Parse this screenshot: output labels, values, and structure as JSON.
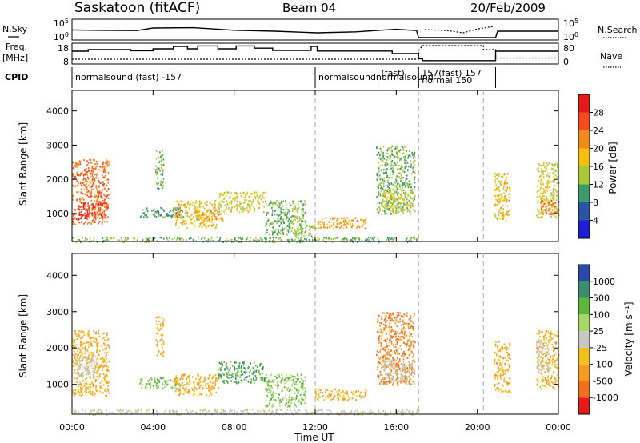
{
  "header": {
    "title": "Saskatoon (fitACF)",
    "beam": "Beam 04",
    "date": "20/Feb/2009"
  },
  "labels": {
    "nsky": "N.Sky",
    "freq_top": "Freq.",
    "freq_unit": "[MHz]",
    "cpid": "CPID",
    "nsearch": "N.Search",
    "nave": "Nave",
    "slant_range_top": "Slant Range [km]",
    "slant_range_bottom": "Slant Range [km]",
    "time_axis": "Time UT",
    "power_cbar": "Power [dB]",
    "velocity_cbar": "Velocity [m s⁻¹]"
  },
  "cpid_segments": [
    {
      "text": "normalsound (fast) -157",
      "start": 0.0,
      "end": 12.0
    },
    {
      "text": "normalsoundnormalsound",
      "start": 12.0,
      "end": 17.1
    },
    {
      "text": "(fast)",
      "start": 15.1,
      "end": 17.1
    },
    {
      "text": "157(fast) 157",
      "start": 17.1,
      "end": 20.9
    },
    {
      "text": "normal 150",
      "start": 17.1,
      "end": 20.3
    }
  ],
  "nsky_axis": {
    "ticks": [
      "10^5",
      "10^0"
    ]
  },
  "nsearch_axis": {
    "ticks": [
      "10^5",
      "10^0"
    ]
  },
  "freq_axis": {
    "ticks": [
      18,
      8
    ],
    "min": 8,
    "max": 18
  },
  "nave_axis": {
    "ticks": [
      80,
      0
    ],
    "min": 0,
    "max": 80
  },
  "freq_line": [
    [
      0,
      14.5
    ],
    [
      0.8,
      14.5
    ],
    [
      0.8,
      15.5
    ],
    [
      2.9,
      15.5
    ],
    [
      2.9,
      14.8
    ],
    [
      4.0,
      14.8
    ],
    [
      4.0,
      16.0
    ],
    [
      5.0,
      16.0
    ],
    [
      5.0,
      17.5
    ],
    [
      5.7,
      17.5
    ],
    [
      5.7,
      16.0
    ],
    [
      6.2,
      16.0
    ],
    [
      6.2,
      17.8
    ],
    [
      7.2,
      17.8
    ],
    [
      7.2,
      16.0
    ],
    [
      8.1,
      16.0
    ],
    [
      8.1,
      17.8
    ],
    [
      9.0,
      17.8
    ],
    [
      9.0,
      16.4
    ],
    [
      9.9,
      16.4
    ],
    [
      9.9,
      15.0
    ],
    [
      11.8,
      15.0
    ],
    [
      11.8,
      17.5
    ],
    [
      12.1,
      17.5
    ],
    [
      12.1,
      14.6
    ],
    [
      15.8,
      14.6
    ],
    [
      15.8,
      13.0
    ],
    [
      17.1,
      13.0
    ],
    [
      17.1,
      9.8
    ],
    [
      17.3,
      9.8
    ],
    [
      17.3,
      8.6
    ],
    [
      20.9,
      8.6
    ],
    [
      20.9,
      14.5
    ],
    [
      24,
      14.5
    ]
  ],
  "nave_line": [
    [
      0,
      12
    ],
    [
      17.1,
      12
    ],
    [
      17.1,
      55
    ],
    [
      17.3,
      80
    ],
    [
      20.3,
      80
    ],
    [
      20.3,
      60
    ],
    [
      20.9,
      60
    ],
    [
      20.9,
      18
    ],
    [
      24,
      18
    ]
  ],
  "nsky_line": [
    [
      0,
      2.4
    ],
    [
      1.0,
      2.3
    ],
    [
      3.2,
      2.2
    ],
    [
      4.0,
      3.0
    ],
    [
      6.0,
      3.1
    ],
    [
      8.0,
      2.3
    ],
    [
      10.0,
      2.0
    ],
    [
      12.1,
      1.5
    ],
    [
      14.0,
      1.8
    ],
    [
      16.0,
      2.6
    ],
    [
      17.0,
      2.2
    ],
    [
      17.1,
      0.0
    ],
    [
      20.9,
      0.0
    ],
    [
      21.0,
      2.0
    ],
    [
      24,
      2.0
    ]
  ],
  "nsearch_line": [
    [
      17.4,
      2.5
    ],
    [
      18.5,
      2.2
    ],
    [
      19.3,
      1.5
    ],
    [
      20.0,
      2.7
    ],
    [
      20.3,
      3.0
    ],
    [
      20.8,
      3.5
    ]
  ],
  "vertical_markers": [
    12.0,
    17.1,
    20.3
  ],
  "colorbars": {
    "power": {
      "ticks": [
        "4",
        "8",
        "12",
        "16",
        "20",
        "24",
        "28"
      ],
      "colors": [
        "#1e1ed8",
        "#2a55a0",
        "#3f9a6a",
        "#a8c93a",
        "#f3c012",
        "#f08a1c",
        "#f34a1e",
        "#e41a1c"
      ]
    },
    "velocity": {
      "ticks": [
        "1000",
        "500",
        "100",
        "25",
        "-25",
        "-100",
        "-500",
        "-1000"
      ],
      "colors": [
        "#2a4aaa",
        "#3c8c6e",
        "#5eb63a",
        "#a8d66a",
        "#c8c8c2",
        "#f0c020",
        "#f59a22",
        "#f0701f",
        "#e41a1c"
      ]
    }
  },
  "chart_data": [
    {
      "type": "heatmap",
      "title": "Saskatoon (fitACF) Beam 04 20/Feb/2009",
      "xlabel": "Time UT",
      "ylabel": "Slant Range [km]",
      "zlabel": "Power [dB]",
      "xlim": [
        0,
        24
      ],
      "ylim": [
        180,
        4600
      ],
      "xticks": [
        "00:00",
        "04:00",
        "08:00",
        "12:00",
        "16:00",
        "20:00",
        "00:00"
      ],
      "xtick_values": [
        0,
        4,
        8,
        12,
        16,
        20,
        24
      ],
      "yticks": [
        1000,
        2000,
        3000,
        4000
      ],
      "grid": false,
      "scatter_regions": [
        {
          "t0": 0.0,
          "t1": 1.8,
          "r0": 700,
          "r1": 2600,
          "value": 24
        },
        {
          "t0": 0.3,
          "t1": 1.5,
          "r0": 850,
          "r1": 1350,
          "value": 28
        },
        {
          "t0": 0.4,
          "t1": 1.1,
          "r0": 1900,
          "r1": 2300,
          "value": 24
        },
        {
          "t0": 4.1,
          "t1": 4.5,
          "r0": 1700,
          "r1": 2900,
          "value": 12
        },
        {
          "t0": 3.3,
          "t1": 5.5,
          "r0": 900,
          "r1": 1200,
          "value": 10
        },
        {
          "t0": 5.0,
          "t1": 7.2,
          "r0": 600,
          "r1": 1400,
          "value": 18
        },
        {
          "t0": 6.0,
          "t1": 7.5,
          "r0": 800,
          "r1": 1100,
          "value": 20
        },
        {
          "t0": 7.2,
          "t1": 9.5,
          "r0": 1050,
          "r1": 1650,
          "value": 16
        },
        {
          "t0": 9.5,
          "t1": 11.5,
          "r0": 400,
          "r1": 1400,
          "value": 12
        },
        {
          "t0": 11.0,
          "t1": 12.0,
          "r0": 300,
          "r1": 700,
          "value": 14
        },
        {
          "t0": 12.0,
          "t1": 14.5,
          "r0": 580,
          "r1": 900,
          "value": 20
        },
        {
          "t0": 15.0,
          "t1": 16.9,
          "r0": 1000,
          "r1": 3000,
          "value": 12
        },
        {
          "t0": 15.3,
          "t1": 16.8,
          "r0": 1100,
          "r1": 1700,
          "value": 16
        },
        {
          "t0": 20.8,
          "t1": 21.6,
          "r0": 800,
          "r1": 2200,
          "value": 18
        },
        {
          "t0": 22.9,
          "t1": 24.0,
          "r0": 900,
          "r1": 2500,
          "value": 16
        },
        {
          "t0": 23.1,
          "t1": 24.0,
          "r0": 1000,
          "r1": 1400,
          "value": 24
        },
        {
          "t0": 0.0,
          "t1": 17.1,
          "r0": 180,
          "r1": 330,
          "value": 12
        }
      ]
    },
    {
      "type": "heatmap",
      "title": "Saskatoon (fitACF) Beam 04 20/Feb/2009",
      "xlabel": "Time UT",
      "ylabel": "Slant Range [km]",
      "zlabel": "Velocity [m s⁻¹]",
      "xlim": [
        0,
        24
      ],
      "ylim": [
        180,
        4600
      ],
      "xticks": [
        "00:00",
        "04:00",
        "08:00",
        "12:00",
        "16:00",
        "20:00",
        "00:00"
      ],
      "xtick_values": [
        0,
        4,
        8,
        12,
        16,
        20,
        24
      ],
      "yticks": [
        1000,
        2000,
        3000,
        4000
      ],
      "grid": false,
      "scatter_regions": [
        {
          "t0": 0.0,
          "t1": 1.8,
          "r0": 700,
          "r1": 2500,
          "value": -100
        },
        {
          "t0": 0.2,
          "t1": 1.2,
          "r0": 1200,
          "r1": 1800,
          "value": 0
        },
        {
          "t0": 4.1,
          "t1": 4.5,
          "r0": 1800,
          "r1": 2900,
          "value": -100
        },
        {
          "t0": 3.3,
          "t1": 5.5,
          "r0": 900,
          "r1": 1200,
          "value": 100
        },
        {
          "t0": 5.0,
          "t1": 7.2,
          "r0": 700,
          "r1": 1300,
          "value": -100
        },
        {
          "t0": 7.2,
          "t1": 9.5,
          "r0": 1050,
          "r1": 1650,
          "value": 500
        },
        {
          "t0": 9.5,
          "t1": 11.5,
          "r0": 400,
          "r1": 1300,
          "value": 100
        },
        {
          "t0": 12.0,
          "t1": 14.5,
          "r0": 580,
          "r1": 900,
          "value": -100
        },
        {
          "t0": 15.0,
          "t1": 16.9,
          "r0": 1000,
          "r1": 3000,
          "value": -500
        },
        {
          "t0": 15.3,
          "t1": 16.8,
          "r0": 1100,
          "r1": 1700,
          "value": 0
        },
        {
          "t0": 20.8,
          "t1": 21.6,
          "r0": 800,
          "r1": 2200,
          "value": -100
        },
        {
          "t0": 22.9,
          "t1": 24.0,
          "r0": 900,
          "r1": 2500,
          "value": -100
        },
        {
          "t0": 22.9,
          "t1": 23.5,
          "r0": 1400,
          "r1": 2200,
          "value": 0
        },
        {
          "t0": 0.0,
          "t1": 17.1,
          "r0": 180,
          "r1": 330,
          "value": 0
        }
      ]
    }
  ]
}
